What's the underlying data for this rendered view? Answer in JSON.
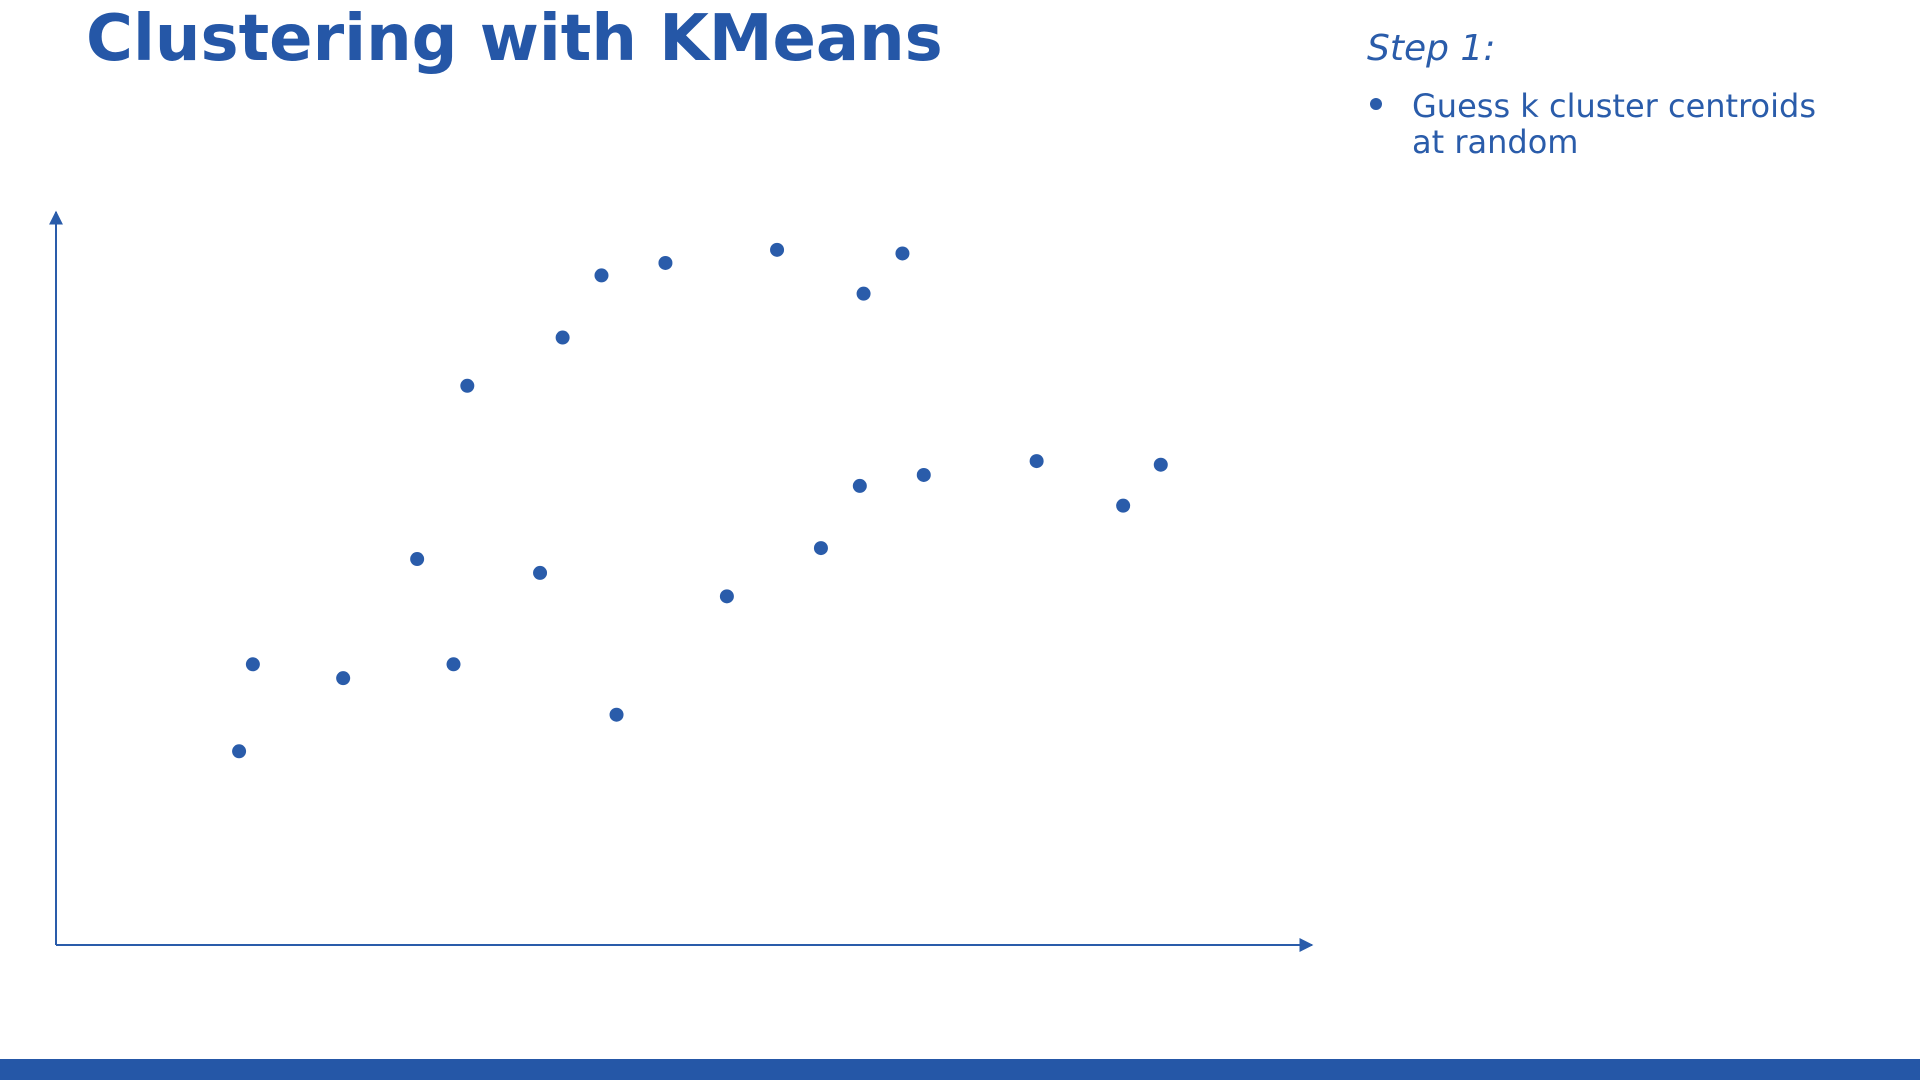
{
  "title": "Clustering with KMeans",
  "step": "Step 1:",
  "bullets": [
    "Guess k cluster centroids at random"
  ],
  "chart_data": {
    "type": "scatter",
    "x": [
      14.6,
      15.7,
      22.9,
      28.8,
      31.7,
      32.8,
      38.6,
      40.4,
      43.5,
      44.7,
      48.6,
      53.5,
      57.5,
      61.0,
      64.1,
      64.4,
      67.5,
      69.2,
      78.2,
      85.1,
      88.1
    ],
    "values": [
      26.5,
      38.4,
      36.5,
      52.8,
      38.4,
      76.5,
      50.9,
      83.1,
      91.6,
      31.5,
      93.3,
      47.7,
      95.1,
      54.3,
      62.8,
      89.1,
      94.6,
      64.3,
      66.2,
      60.1,
      65.7
    ],
    "color": "#2a5caa",
    "xlim": [
      0,
      100
    ],
    "ylim": [
      0,
      100
    ]
  }
}
